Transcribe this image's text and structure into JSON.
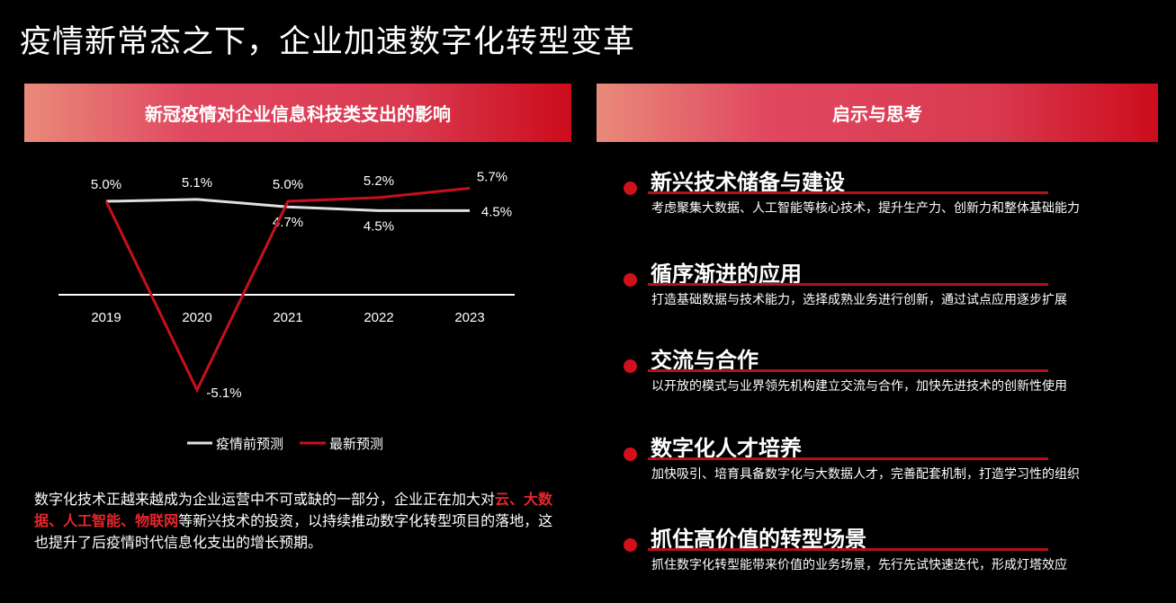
{
  "title": "疫情新常态之下，企业加速数字化转型变革",
  "left_header": "新冠疫情对企业信息科技类支出的影响",
  "right_header": "启示与思考",
  "chart_data": {
    "type": "line",
    "categories": [
      "2019",
      "2020",
      "2021",
      "2022",
      "2023"
    ],
    "series": [
      {
        "name": "疫情前预测",
        "color": "#e0e0e0",
        "values": [
          5.0,
          5.1,
          4.7,
          4.5,
          4.5
        ],
        "labels": [
          "5.0%",
          "5.1%",
          "4.7%",
          "4.5%",
          "4.5%"
        ]
      },
      {
        "name": "最新预测",
        "color": "#c8101c",
        "values": [
          5.0,
          -5.1,
          5.0,
          5.2,
          5.7
        ],
        "labels": [
          "",
          "-5.1%",
          "5.0%",
          "5.2%",
          "5.7%"
        ]
      }
    ],
    "legend": "bottom",
    "grid": false
  },
  "paragraph": {
    "p1": "数字化技术正越来越成为企业运营中不可或缺的一部分，企业正在加大对",
    "hl1": "云",
    "sep1": "、",
    "hl2": "大数据",
    "sep2": "、",
    "hl3": "人工智能",
    "sep3": "、",
    "hl4": "物联网",
    "p2": "等新兴技术的投资，以持续推动数字化转型项目的落地，这也提升了后疫情时代信息化支出的增长预期。"
  },
  "items": [
    {
      "title": "新兴技术储备与建设",
      "desc": "考虑聚集大数据、人工智能等核心技术，提升生产力、创新力和整体基础能力"
    },
    {
      "title": "循序渐进的应用",
      "desc": "打造基础数据与技术能力，选择成熟业务进行创新，通过试点应用逐步扩展"
    },
    {
      "title": "交流与合作",
      "desc": "以开放的模式与业界领先机构建立交流与合作，加快先进技术的创新性使用"
    },
    {
      "title": "数字化人才培养",
      "desc": "加快吸引、培育具备数字化与大数据人才，完善配套机制，打造学习性的组织"
    },
    {
      "title": "抓住高价值的转型场景",
      "desc": "抓住数字化转型能带来价值的业务场景，先行先试快速迭代，形成灯塔效应"
    }
  ]
}
